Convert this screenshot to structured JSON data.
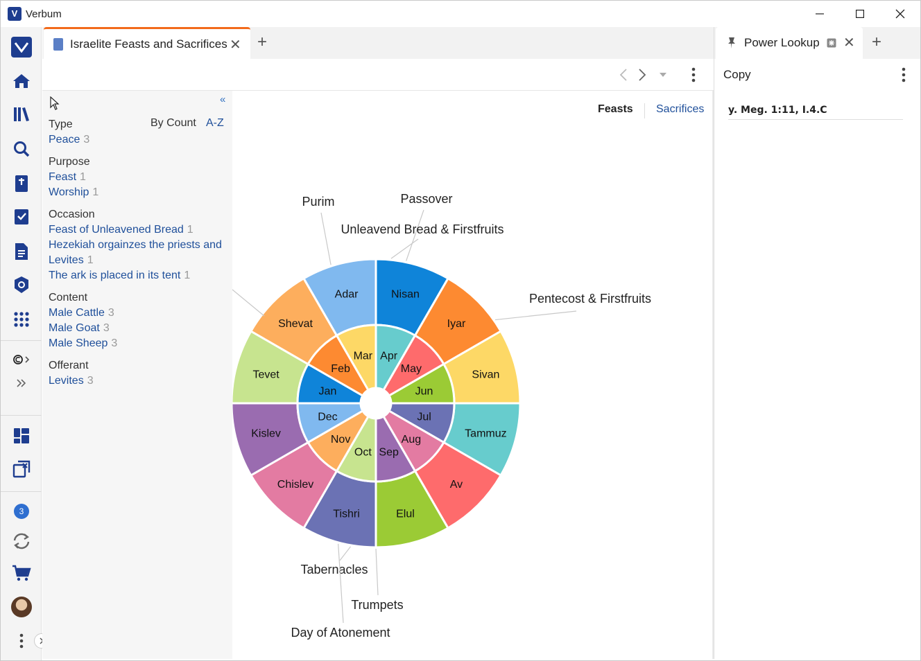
{
  "window": {
    "title": "Verbum",
    "logo_letter": "V"
  },
  "tab": {
    "title": "Israelite Feasts and Sacrifices",
    "close": "✕",
    "add": "+"
  },
  "filter": {
    "collapse": "«",
    "sort": {
      "by_count": "By Count",
      "az": "A-Z"
    },
    "rows": [
      {
        "kind": "head",
        "label": "Type"
      },
      {
        "kind": "link",
        "label": "Peace",
        "count": "3"
      },
      {
        "kind": "head",
        "label": "Purpose"
      },
      {
        "kind": "link",
        "label": "Feast",
        "count": "1"
      },
      {
        "kind": "link",
        "label": "Worship",
        "count": "1"
      },
      {
        "kind": "head",
        "label": "Occasion"
      },
      {
        "kind": "link",
        "label": "Feast of Unleavened Bread",
        "count": "1"
      },
      {
        "kind": "link",
        "label": "Hezekiah orgainzes the priests and",
        "count": ""
      },
      {
        "kind": "link",
        "label": "Levites",
        "count": "1"
      },
      {
        "kind": "link",
        "label": "The ark is placed in its tent",
        "count": "1"
      },
      {
        "kind": "head",
        "label": "Content"
      },
      {
        "kind": "link",
        "label": "Male Cattle",
        "count": "3"
      },
      {
        "kind": "link",
        "label": "Male Goat",
        "count": "3"
      },
      {
        "kind": "link",
        "label": "Male Sheep",
        "count": "3"
      },
      {
        "kind": "head",
        "label": "Offerant"
      },
      {
        "kind": "link",
        "label": "Levites",
        "count": "3"
      }
    ]
  },
  "views": {
    "feasts": "Feasts",
    "sacrifices": "Sacrifices"
  },
  "chart_data": {
    "type": "sunburst",
    "outer_ring": [
      {
        "label": "Nisan",
        "color": "#0f84d9"
      },
      {
        "label": "Iyar",
        "color": "#fd8a31"
      },
      {
        "label": "Sivan",
        "color": "#fdd866"
      },
      {
        "label": "Tammuz",
        "color": "#67cccd"
      },
      {
        "label": "Av",
        "color": "#fe6b6c"
      },
      {
        "label": "Elul",
        "color": "#9bcb35"
      },
      {
        "label": "Tishri",
        "color": "#6b72b4"
      },
      {
        "label": "Chislev",
        "color": "#e37ba2"
      },
      {
        "label": "Kislev",
        "color": "#9a6cb0"
      },
      {
        "label": "Tevet",
        "color": "#c7e48f"
      },
      {
        "label": "Shevat",
        "color": "#fdae5d"
      },
      {
        "label": "Adar",
        "color": "#80b9ef"
      }
    ],
    "inner_ring": [
      {
        "label": "Apr",
        "color": "#67cccd"
      },
      {
        "label": "May",
        "color": "#fe6b6c"
      },
      {
        "label": "Jun",
        "color": "#9bcb35"
      },
      {
        "label": "Jul",
        "color": "#6b72b4"
      },
      {
        "label": "Aug",
        "color": "#e37ba2"
      },
      {
        "label": "Sep",
        "color": "#9a6cb0"
      },
      {
        "label": "Oct",
        "color": "#c7e48f"
      },
      {
        "label": "Nov",
        "color": "#fdae5d"
      },
      {
        "label": "Dec",
        "color": "#80b9ef"
      },
      {
        "label": "Jan",
        "color": "#0f84d9"
      },
      {
        "label": "Feb",
        "color": "#fd8a31"
      },
      {
        "label": "Mar",
        "color": "#fdd866"
      }
    ],
    "feasts": [
      {
        "label": "Passover",
        "month": "Nisan"
      },
      {
        "label": "Unleavend Bread & Firstfruits",
        "month": "Nisan"
      },
      {
        "label": "Pentecost & Firstfruits",
        "month": "Sivan"
      },
      {
        "label": "Purim",
        "month": "Adar"
      },
      {
        "label": "Tabernacles",
        "month": "Tishri"
      },
      {
        "label": "Trumpets",
        "month": "Tishri"
      },
      {
        "label": "Day of Atonement",
        "month": "Tishri"
      }
    ]
  },
  "power_lookup": {
    "title": "Power Lookup",
    "close": "✕",
    "add": "+",
    "toolbar_label": "Copy",
    "reference": "y. Meg. 1:11, I.4.C"
  },
  "rail": {
    "badge": "3"
  },
  "colors": {
    "accent": "#f26a1b",
    "link": "#1f4f9a",
    "brand": "#1e3d8f"
  }
}
